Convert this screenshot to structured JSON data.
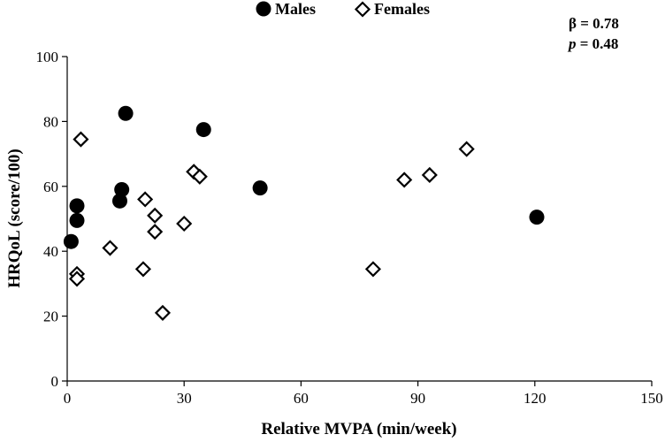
{
  "chart_data": {
    "type": "scatter",
    "title": "",
    "xlabel": "Relative MVPA (min/week)",
    "ylabel": "HRQoL (score/100)",
    "xlim": [
      0,
      150
    ],
    "ylim": [
      0,
      100
    ],
    "x_ticks": [
      0,
      30,
      60,
      90,
      120,
      150
    ],
    "y_ticks": [
      0,
      20,
      40,
      60,
      80,
      100
    ],
    "grid": false,
    "legend_position": "top-center",
    "annotation": {
      "beta_label": "β = 0.78",
      "p_symbol": "p",
      "p_value": " = 0.48"
    },
    "series": [
      {
        "name": "Males",
        "marker": "filled-circle",
        "color": "#000000",
        "points": [
          {
            "x": 1,
            "y": 43
          },
          {
            "x": 2.5,
            "y": 54
          },
          {
            "x": 2.5,
            "y": 49.5
          },
          {
            "x": 13.5,
            "y": 55.5
          },
          {
            "x": 14,
            "y": 59
          },
          {
            "x": 15,
            "y": 82.5
          },
          {
            "x": 35,
            "y": 77.5
          },
          {
            "x": 49.5,
            "y": 59.5
          },
          {
            "x": 120.5,
            "y": 50.5
          }
        ]
      },
      {
        "name": "Females",
        "marker": "open-diamond",
        "color": "#000000",
        "points": [
          {
            "x": 2.5,
            "y": 33
          },
          {
            "x": 2.5,
            "y": 31.5
          },
          {
            "x": 3.5,
            "y": 74.5
          },
          {
            "x": 11,
            "y": 41
          },
          {
            "x": 19.5,
            "y": 34.5
          },
          {
            "x": 20,
            "y": 56
          },
          {
            "x": 22.5,
            "y": 51
          },
          {
            "x": 22.5,
            "y": 46
          },
          {
            "x": 24.5,
            "y": 21
          },
          {
            "x": 30,
            "y": 48.5
          },
          {
            "x": 32.5,
            "y": 64.5
          },
          {
            "x": 34,
            "y": 63
          },
          {
            "x": 78.5,
            "y": 34.5
          },
          {
            "x": 86.5,
            "y": 62
          },
          {
            "x": 93,
            "y": 63.5
          },
          {
            "x": 102.5,
            "y": 71.5
          }
        ]
      }
    ]
  }
}
